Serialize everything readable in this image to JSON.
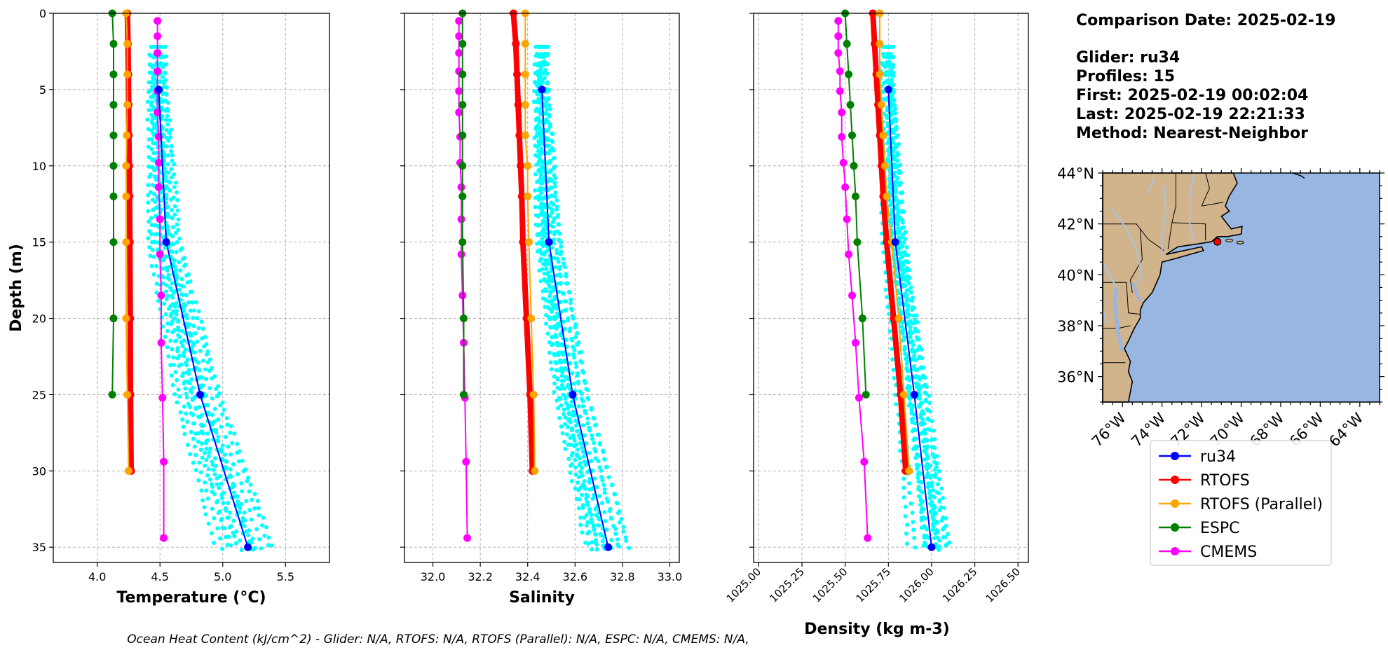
{
  "colors": {
    "ru34": "#0000ff",
    "RTOFS": "#ff0000",
    "RTOFS (Parallel)": "#ffa500",
    "ESPC": "#008000",
    "CMEMS": "#ff00ff",
    "profiles": "#00ffff",
    "land": "#d2b48c",
    "ocean": "#97b6e1",
    "river": "#a7c3e6"
  },
  "info": {
    "comparison": "Comparison Date: 2025-02-19",
    "glider": "Glider: ru34",
    "profiles": "Profiles: 15",
    "first": "First: 2025-02-19 00:02:04",
    "last": "Last: 2025-02-19 22:21:33",
    "method": "Method: Nearest-Neighbor"
  },
  "footer": "Ocean Heat Content (kJ/cm^2) - Glider: N/A,  RTOFS: N/A,  RTOFS (Parallel): N/A,  ESPC: N/A,  CMEMS: N/A,",
  "chart_data": [
    {
      "type": "line",
      "xlabel": "Temperature (°C)",
      "ylabel": "Depth (m)",
      "xlim": [
        3.65,
        5.85
      ],
      "ylim": [
        36,
        0
      ],
      "y_inverted": true,
      "grid": true,
      "xticks": [
        4.0,
        4.5,
        5.0,
        5.5
      ],
      "yticks": [
        0,
        5,
        10,
        15,
        20,
        25,
        30,
        35
      ],
      "series": [
        {
          "name": "ru34",
          "depth": [
            5,
            15,
            25,
            35
          ],
          "values": [
            4.49,
            4.55,
            4.82,
            5.2
          ]
        },
        {
          "name": "RTOFS",
          "depth": [
            0,
            2,
            4,
            6,
            8,
            10,
            12,
            15,
            20,
            25,
            30
          ],
          "values": [
            4.24,
            4.245,
            4.248,
            4.25,
            4.252,
            4.255,
            4.257,
            4.26,
            4.263,
            4.265,
            4.27
          ]
        },
        {
          "name": "RTOFS (Parallel)",
          "depth": [
            0,
            2,
            4,
            6,
            8,
            10,
            12,
            15,
            20,
            25,
            30
          ],
          "values": [
            4.23,
            4.24,
            4.24,
            4.24,
            4.235,
            4.23,
            4.23,
            4.23,
            4.23,
            4.24,
            4.25
          ]
        },
        {
          "name": "ESPC",
          "depth": [
            0,
            2,
            4,
            6,
            8,
            10,
            12,
            15,
            20,
            25
          ],
          "values": [
            4.12,
            4.13,
            4.13,
            4.13,
            4.13,
            4.13,
            4.13,
            4.13,
            4.13,
            4.12
          ]
        },
        {
          "name": "CMEMS",
          "depth": [
            0.5,
            1.5,
            2.6,
            3.8,
            5.1,
            6.5,
            8.1,
            9.8,
            11.4,
            13.5,
            15.8,
            18.5,
            21.6,
            25.2,
            29.4,
            34.4
          ],
          "values": [
            4.48,
            4.48,
            4.48,
            4.48,
            4.48,
            4.48,
            4.49,
            4.49,
            4.49,
            4.5,
            4.5,
            4.51,
            4.51,
            4.52,
            4.53,
            4.53
          ]
        }
      ]
    },
    {
      "type": "line",
      "xlabel": "Salinity",
      "ylabel": "",
      "xlim": [
        31.88,
        33.04
      ],
      "ylim": [
        36,
        0
      ],
      "y_inverted": true,
      "grid": true,
      "xticks": [
        32.0,
        32.2,
        32.4,
        32.6,
        32.8,
        33.0
      ],
      "yticks": [
        0,
        5,
        10,
        15,
        20,
        25,
        30,
        35
      ],
      "series": [
        {
          "name": "ru34",
          "depth": [
            5,
            15,
            25,
            35
          ],
          "values": [
            32.46,
            32.49,
            32.59,
            32.74
          ]
        },
        {
          "name": "RTOFS",
          "depth": [
            0,
            2,
            4,
            6,
            8,
            10,
            12,
            15,
            20,
            25,
            30
          ],
          "values": [
            32.34,
            32.35,
            32.355,
            32.36,
            32.365,
            32.37,
            32.375,
            32.38,
            32.395,
            32.41,
            32.42
          ]
        },
        {
          "name": "RTOFS (Parallel)",
          "depth": [
            0,
            2,
            4,
            6,
            8,
            10,
            12,
            15,
            20,
            25,
            30
          ],
          "values": [
            32.39,
            32.39,
            32.39,
            32.39,
            32.39,
            32.4,
            32.4,
            32.405,
            32.415,
            32.425,
            32.43
          ]
        },
        {
          "name": "ESPC",
          "depth": [
            0,
            2,
            4,
            6,
            8,
            10,
            12,
            15,
            20,
            25
          ],
          "values": [
            32.125,
            32.125,
            32.125,
            32.125,
            32.125,
            32.125,
            32.125,
            32.125,
            32.13,
            32.13
          ]
        },
        {
          "name": "CMEMS",
          "depth": [
            0.5,
            1.5,
            2.6,
            3.8,
            5.1,
            6.5,
            8.1,
            9.8,
            11.4,
            13.5,
            15.8,
            18.5,
            21.6,
            25.2,
            29.4,
            34.4
          ],
          "values": [
            32.11,
            32.11,
            32.11,
            32.11,
            32.11,
            32.11,
            32.115,
            32.115,
            32.12,
            32.12,
            32.12,
            32.125,
            32.13,
            32.135,
            32.14,
            32.145
          ]
        }
      ]
    },
    {
      "type": "line",
      "xlabel": "Density (kg m-3)",
      "ylabel": "",
      "xlim": [
        1024.97,
        1026.56
      ],
      "ylim": [
        36,
        0
      ],
      "y_inverted": true,
      "grid": true,
      "xticks": [
        1025.0,
        1025.25,
        1025.5,
        1025.75,
        1026.0,
        1026.25,
        1026.5
      ],
      "xtick_labels": [
        "1025.00",
        "1025.25",
        "1025.50",
        "1025.75",
        "1026.00",
        "1026.25",
        "1026.50"
      ],
      "yticks": [
        0,
        5,
        10,
        15,
        20,
        25,
        30,
        35
      ],
      "series": [
        {
          "name": "ru34",
          "depth": [
            5,
            15,
            25,
            35
          ],
          "values": [
            1025.75,
            1025.79,
            1025.9,
            1026.0
          ]
        },
        {
          "name": "RTOFS",
          "depth": [
            0,
            2,
            4,
            6,
            8,
            10,
            12,
            15,
            20,
            25,
            30
          ],
          "values": [
            1025.66,
            1025.67,
            1025.68,
            1025.69,
            1025.7,
            1025.71,
            1025.72,
            1025.74,
            1025.78,
            1025.82,
            1025.85
          ]
        },
        {
          "name": "RTOFS (Parallel)",
          "depth": [
            0,
            2,
            4,
            6,
            8,
            10,
            12,
            15,
            20,
            25,
            30
          ],
          "values": [
            1025.7,
            1025.7,
            1025.7,
            1025.71,
            1025.72,
            1025.73,
            1025.74,
            1025.77,
            1025.81,
            1025.84,
            1025.87
          ]
        },
        {
          "name": "ESPC",
          "depth": [
            0,
            2,
            4,
            6,
            8,
            10,
            12,
            15,
            20,
            25
          ],
          "values": [
            1025.5,
            1025.51,
            1025.52,
            1025.53,
            1025.54,
            1025.55,
            1025.56,
            1025.57,
            1025.6,
            1025.62
          ]
        },
        {
          "name": "CMEMS",
          "depth": [
            0.5,
            1.5,
            2.6,
            3.8,
            5.1,
            6.5,
            8.1,
            9.8,
            11.4,
            13.5,
            15.8,
            18.5,
            21.6,
            25.2,
            29.4,
            34.4
          ],
          "values": [
            1025.46,
            1025.46,
            1025.46,
            1025.47,
            1025.47,
            1025.48,
            1025.48,
            1025.49,
            1025.5,
            1025.51,
            1025.52,
            1025.54,
            1025.56,
            1025.58,
            1025.61,
            1025.63
          ]
        }
      ]
    }
  ],
  "map": {
    "lat_labels": [
      "44°N",
      "42°N",
      "40°N",
      "38°N",
      "36°N"
    ],
    "lat_values": [
      44,
      42,
      40,
      38,
      36
    ],
    "lon_labels": [
      "76°W",
      "74°W",
      "72°W",
      "70°W",
      "68°W",
      "66°W",
      "64°W"
    ],
    "lon_values": [
      -76,
      -74,
      -72,
      -70,
      -68,
      -66,
      -64
    ],
    "lon_range": [
      -77,
      -63
    ],
    "lat_range": [
      35,
      44
    ],
    "glider_position": {
      "lon": -71.2,
      "lat": 41.3
    }
  },
  "legend": [
    "ru34",
    "RTOFS",
    "RTOFS (Parallel)",
    "ESPC",
    "CMEMS"
  ]
}
